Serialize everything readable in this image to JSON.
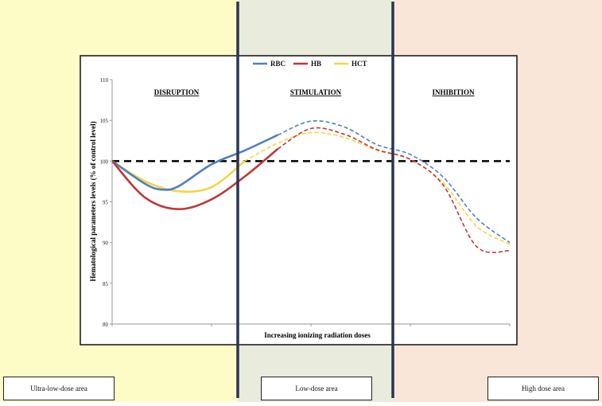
{
  "zones": [
    {
      "id": "ultra",
      "label": "Ultra-low-dose area",
      "color": "#fdfcc6"
    },
    {
      "id": "low",
      "label": "Low-dose area",
      "color": "#e9ecdc"
    },
    {
      "id": "high",
      "label": "High dose area",
      "color": "#f9e6d8"
    }
  ],
  "chart_data": {
    "type": "line",
    "ylabel": "Hematological parameters levels (% of control level)",
    "xlabel": "Increasing ionizing radiation doses",
    "ylim": [
      80,
      110
    ],
    "yticks": [
      80,
      85,
      90,
      95,
      100,
      105,
      110
    ],
    "reference_line": 100,
    "region_labels": [
      "DISRUPTION",
      "STIMULATION",
      "INHIBITION"
    ],
    "x": [
      0,
      1,
      2,
      3,
      4,
      5,
      6,
      7,
      8,
      9,
      10,
      11,
      12
    ],
    "series": [
      {
        "name": "RBC",
        "color": "#4f81bd",
        "solid": [
          [
            0,
            100
          ],
          [
            1,
            97.2
          ],
          [
            1.5,
            96.5
          ],
          [
            2,
            96.9
          ],
          [
            3,
            99.6
          ],
          [
            4,
            101.3
          ],
          [
            5,
            103.2
          ]
        ],
        "dashed": [
          [
            5,
            103.2
          ],
          [
            6,
            104.9
          ],
          [
            7,
            104.2
          ],
          [
            8,
            102
          ],
          [
            9,
            100.8
          ],
          [
            10,
            98
          ],
          [
            11,
            93
          ],
          [
            12,
            90
          ]
        ]
      },
      {
        "name": "HB",
        "color": "#c0373a",
        "solid": [
          [
            0,
            100
          ],
          [
            1,
            95.5
          ],
          [
            2,
            94.1
          ],
          [
            3,
            95.3
          ],
          [
            4,
            98.1
          ],
          [
            5,
            101.5
          ]
        ],
        "dashed": [
          [
            5,
            101.5
          ],
          [
            6,
            104
          ],
          [
            7,
            103.3
          ],
          [
            8,
            101.4
          ],
          [
            9,
            100.2
          ],
          [
            10,
            97
          ],
          [
            11,
            89.5
          ],
          [
            12,
            89
          ]
        ]
      },
      {
        "name": "HCT",
        "color": "#f5d443",
        "solid": [
          [
            0,
            100
          ],
          [
            1,
            97.5
          ],
          [
            2,
            96.3
          ],
          [
            3,
            96.8
          ],
          [
            4,
            100
          ]
        ],
        "dashed": [
          [
            4,
            100
          ],
          [
            5,
            102.2
          ],
          [
            6,
            103.5
          ],
          [
            7,
            102.9
          ],
          [
            8,
            101.3
          ],
          [
            9,
            100.2
          ],
          [
            10,
            97.3
          ],
          [
            11,
            92
          ],
          [
            12,
            89.8
          ]
        ]
      }
    ]
  }
}
